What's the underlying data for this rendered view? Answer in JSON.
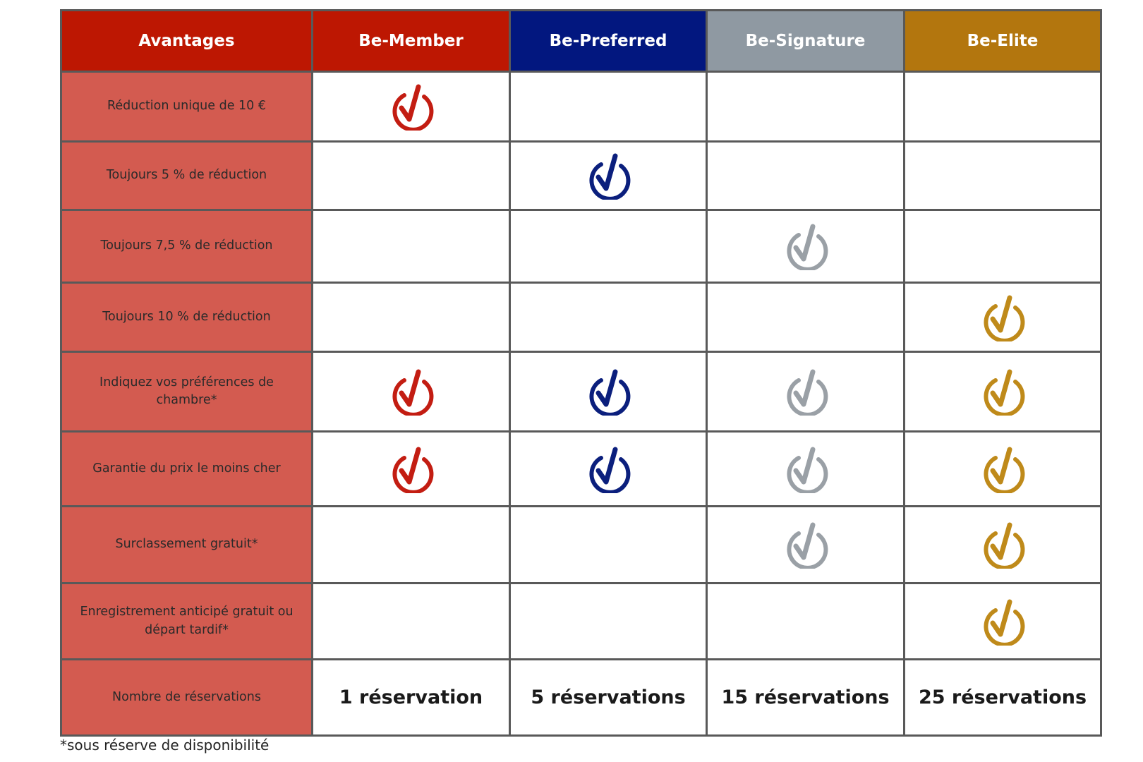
{
  "table": {
    "columns": [
      {
        "name": "Avantages",
        "color": "#bd1702"
      },
      {
        "name": "Be-Member",
        "color": "#bd1702"
      },
      {
        "name": "Be-Preferred",
        "color": "#02177f"
      },
      {
        "name": "Be-Signature",
        "color": "#8f99a2"
      },
      {
        "name": "Be-Elite",
        "color": "#b3760e"
      }
    ],
    "label_color": "#d35b50",
    "check_colors": [
      "#c31d12",
      "#0b1f7d",
      "#9aa0a6",
      "#bf8a1a"
    ],
    "rows": [
      {
        "label": "Réduction unique de 10 €",
        "checks": [
          true,
          false,
          false,
          false
        ]
      },
      {
        "label": "Toujours 5 % de réduction",
        "checks": [
          false,
          true,
          false,
          false
        ]
      },
      {
        "label": "Toujours 7,5 % de réduction",
        "checks": [
          false,
          false,
          true,
          false
        ]
      },
      {
        "label": "Toujours 10 % de réduction",
        "checks": [
          false,
          false,
          false,
          true
        ]
      },
      {
        "label": "Indiquez vos préférences de chambre*",
        "checks": [
          true,
          true,
          true,
          true
        ]
      },
      {
        "label": "Garantie du prix le moins cher",
        "checks": [
          true,
          true,
          true,
          true
        ]
      },
      {
        "label": "Surclassement gratuit*",
        "checks": [
          false,
          false,
          true,
          true
        ]
      },
      {
        "label": "Enregistrement anticipé gratuit ou départ tardif*",
        "checks": [
          false,
          false,
          false,
          true
        ]
      }
    ],
    "summary": {
      "label": "Nombre de réservations",
      "values": [
        "1 réservation",
        "5 réservations",
        "15 réservations",
        "25 réservations"
      ]
    }
  },
  "footnote": "*sous réserve de disponibilité"
}
